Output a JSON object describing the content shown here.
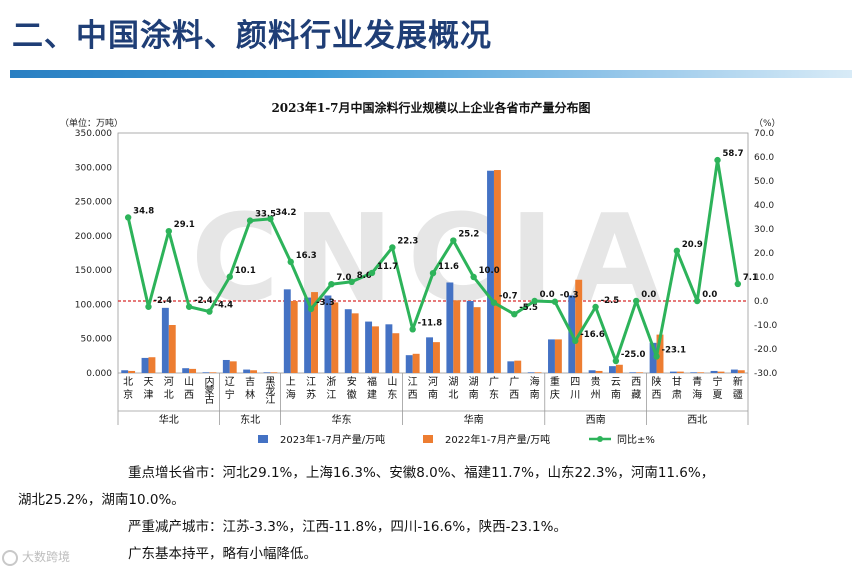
{
  "slide": {
    "title": "二、中国涂料、颜料行业发展概况",
    "watermark": "大数跨境"
  },
  "chart_data": {
    "type": "bar",
    "title": "2023年1-7月中国涂料行业规模以上企业各省市产量分布图",
    "left_unit": "（单位：万吨）",
    "right_unit": "（%）",
    "ylim": [
      0,
      350
    ],
    "y2lim": [
      -30,
      70
    ],
    "y_ticks": [
      "0.000",
      "50.000",
      "100.000",
      "150.000",
      "200.000",
      "250.000",
      "300.000",
      "350.000"
    ],
    "y2_ticks": [
      "-30.0",
      "-20.0",
      "-10.0",
      "0.0",
      "10.0",
      "20.0",
      "30.0",
      "40.0",
      "50.0",
      "60.0",
      "70.0"
    ],
    "reference_line": 0,
    "categories": [
      "北京",
      "天津",
      "河北",
      "山西",
      "内蒙古",
      "辽宁",
      "吉林",
      "黑龙江",
      "上海",
      "江苏",
      "浙江",
      "安徽",
      "福建",
      "山东",
      "江西",
      "河南",
      "湖北",
      "湖南",
      "广东",
      "广西",
      "海南",
      "重庆",
      "四川",
      "贵州",
      "云南",
      "西藏",
      "陕西",
      "甘肃",
      "青海",
      "宁夏",
      "新疆"
    ],
    "regions": [
      {
        "name": "华北",
        "start": 0,
        "end": 4
      },
      {
        "name": "东北",
        "start": 5,
        "end": 7
      },
      {
        "name": "华东",
        "start": 8,
        "end": 13
      },
      {
        "name": "华南",
        "start": 14,
        "end": 20
      },
      {
        "name": "西南",
        "start": 21,
        "end": 25
      },
      {
        "name": "西北",
        "start": 26,
        "end": 30
      }
    ],
    "series": [
      {
        "name": "2023年1-7月产量/万吨",
        "type": "bar",
        "axis": "left",
        "color": "#4472c4",
        "values": [
          4,
          22,
          95,
          7,
          1,
          19,
          5,
          1,
          122,
          110,
          113,
          93,
          75,
          71,
          26,
          52,
          132,
          105,
          295,
          17,
          1,
          49,
          113,
          4,
          10,
          1,
          44,
          2,
          1,
          3,
          5
        ]
      },
      {
        "name": "2022年1-7月产量/万吨",
        "type": "bar",
        "axis": "left",
        "color": "#ed7d31",
        "values": [
          3,
          23,
          70,
          6,
          1,
          17,
          4,
          1,
          105,
          118,
          103,
          87,
          68,
          58,
          28,
          45,
          106,
          96,
          296,
          18,
          1,
          49,
          136,
          3,
          12,
          1,
          56,
          2,
          1,
          2,
          4
        ]
      },
      {
        "name": "同比±%",
        "type": "line",
        "axis": "right",
        "color": "#2db35a",
        "values": [
          34.8,
          -2.4,
          29.1,
          -2.4,
          -4.4,
          10.1,
          33.5,
          34.2,
          16.3,
          -3.3,
          7.0,
          8.0,
          11.7,
          22.3,
          -11.8,
          11.6,
          25.2,
          10.0,
          -0.7,
          -5.5,
          0.0,
          -0.3,
          -16.6,
          -2.5,
          -25.0,
          0.0,
          -23.1,
          20.9,
          0.0,
          58.7,
          7.1
        ]
      }
    ],
    "data_labels": [
      "34.8",
      "-2.4",
      "29.1",
      "-2.4",
      "-4.4",
      "10.1",
      "33.5",
      "34.2",
      "16.3",
      "-3.3",
      "7.0",
      "8.0",
      "11.7",
      "22.3",
      "-11.8",
      "11.6",
      "25.2",
      "10.0",
      "-0.7",
      "-5.5",
      "0.0",
      "-0.3",
      "-16.6",
      "-2.5",
      "-25.0",
      "0.0",
      "-23.1",
      "20.9",
      "0.0",
      "58.7",
      "7.1"
    ],
    "legend_position": "bottom",
    "watermark_text": "CNCIA"
  },
  "notes": [
    "重点增长省市：河北29.1%，上海16.3%、安徽8.0%、福建11.7%，山东22.3%，河南11.6%，",
    "湖北25.2%，湖南10.0%。",
    "严重减产城市：江苏-3.3%，江西-11.8%，四川-16.6%，陕西-23.1%。",
    "广东基本持平，略有小幅降低。"
  ]
}
